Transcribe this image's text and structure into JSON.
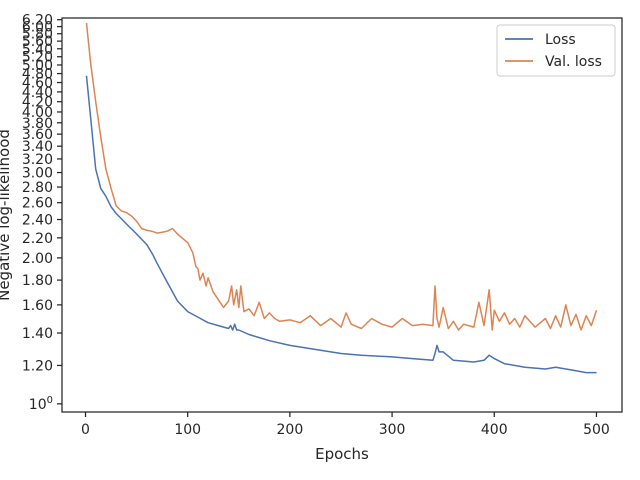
{
  "chart_data": {
    "type": "line",
    "xlabel": "Epochs",
    "ylabel": "Negative log-likelihood",
    "xlim": [
      -23,
      525
    ],
    "ylim": [
      0.962,
      6.25
    ],
    "y_scale": "log",
    "grid": false,
    "legend_position": "top-right",
    "x_ticks": [
      0,
      100,
      200,
      300,
      400,
      500
    ],
    "x_tick_labels": [
      "0",
      "100",
      "200",
      "300",
      "400",
      "500"
    ],
    "y_ticks": [
      1.0,
      1.2,
      1.4,
      1.6,
      1.8,
      2.0,
      2.2,
      2.4,
      2.6,
      2.8,
      3.0,
      3.2,
      3.4,
      3.6,
      3.8,
      4.0,
      4.2,
      4.4,
      4.6,
      4.8,
      5.0,
      5.2,
      5.4,
      5.6,
      5.8,
      6.0,
      6.2
    ],
    "y_tick_labels": [
      "10^0",
      "1.20",
      "1.40",
      "1.60",
      "1.80",
      "2.00",
      "2.20",
      "2.40",
      "2.60",
      "2.80",
      "3.00",
      "3.20",
      "3.40",
      "3.60",
      "3.80",
      "4.00",
      "4.20",
      "4.40",
      "4.60",
      "4.80",
      "5.00",
      "5.20",
      "5.40",
      "5.60",
      "5.80",
      "6.00",
      "6.20"
    ],
    "series": [
      {
        "name": "Loss",
        "color": "#4c72b0",
        "x": [
          1,
          5,
          10,
          15,
          20,
          25,
          30,
          40,
          50,
          60,
          66,
          70,
          80,
          90,
          100,
          110,
          120,
          130,
          140,
          142,
          144,
          146,
          148,
          150,
          160,
          170,
          180,
          200,
          220,
          250,
          270,
          300,
          320,
          340,
          342,
          344,
          346,
          350,
          360,
          380,
          390,
          395,
          400,
          410,
          430,
          450,
          460,
          470,
          480,
          490,
          500
        ],
        "y": [
          4.75,
          3.9,
          3.05,
          2.78,
          2.68,
          2.55,
          2.47,
          2.35,
          2.24,
          2.13,
          2.03,
          1.95,
          1.78,
          1.63,
          1.55,
          1.51,
          1.47,
          1.45,
          1.43,
          1.45,
          1.42,
          1.46,
          1.42,
          1.42,
          1.39,
          1.37,
          1.35,
          1.32,
          1.3,
          1.27,
          1.26,
          1.25,
          1.24,
          1.23,
          1.27,
          1.32,
          1.28,
          1.28,
          1.23,
          1.22,
          1.23,
          1.26,
          1.24,
          1.21,
          1.19,
          1.18,
          1.19,
          1.18,
          1.17,
          1.16,
          1.16
        ]
      },
      {
        "name": "Val. loss",
        "color": "#dd8452",
        "x": [
          1,
          5,
          10,
          15,
          20,
          25,
          30,
          35,
          40,
          45,
          50,
          55,
          60,
          65,
          70,
          75,
          80,
          85,
          90,
          100,
          105,
          108,
          110,
          112,
          115,
          118,
          120,
          125,
          130,
          135,
          140,
          143,
          145,
          148,
          150,
          152,
          155,
          160,
          165,
          170,
          175,
          180,
          185,
          190,
          200,
          210,
          220,
          230,
          240,
          250,
          255,
          260,
          270,
          280,
          290,
          300,
          310,
          320,
          330,
          340,
          342,
          344,
          346,
          350,
          355,
          360,
          365,
          370,
          380,
          385,
          390,
          395,
          398,
          400,
          405,
          410,
          415,
          420,
          425,
          430,
          440,
          450,
          455,
          460,
          465,
          470,
          475,
          480,
          485,
          490,
          495,
          500
        ],
        "y": [
          6.1,
          5.05,
          4.2,
          3.55,
          3.05,
          2.78,
          2.56,
          2.5,
          2.48,
          2.44,
          2.38,
          2.3,
          2.28,
          2.27,
          2.25,
          2.26,
          2.27,
          2.3,
          2.24,
          2.15,
          2.05,
          1.92,
          1.9,
          1.8,
          1.86,
          1.75,
          1.82,
          1.7,
          1.64,
          1.58,
          1.63,
          1.75,
          1.6,
          1.72,
          1.58,
          1.75,
          1.55,
          1.57,
          1.52,
          1.62,
          1.5,
          1.54,
          1.5,
          1.48,
          1.49,
          1.47,
          1.52,
          1.45,
          1.5,
          1.44,
          1.54,
          1.46,
          1.43,
          1.5,
          1.46,
          1.44,
          1.5,
          1.45,
          1.46,
          1.45,
          1.75,
          1.5,
          1.44,
          1.58,
          1.43,
          1.48,
          1.42,
          1.46,
          1.44,
          1.62,
          1.45,
          1.72,
          1.42,
          1.56,
          1.48,
          1.54,
          1.46,
          1.5,
          1.44,
          1.52,
          1.44,
          1.5,
          1.43,
          1.52,
          1.44,
          1.6,
          1.45,
          1.53,
          1.42,
          1.52,
          1.45,
          1.56
        ]
      }
    ]
  }
}
